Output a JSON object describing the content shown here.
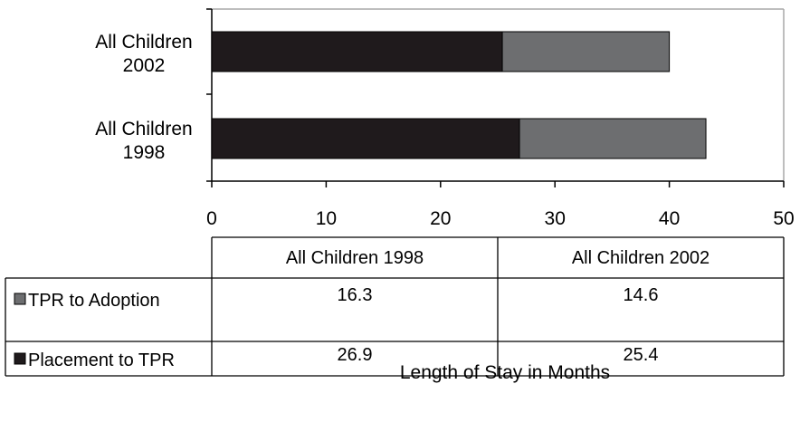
{
  "chart_data": {
    "type": "bar",
    "orientation": "horizontal",
    "stacked": true,
    "categories": [
      {
        "lines": [
          "All Children",
          "1998"
        ]
      },
      {
        "lines": [
          "All Children",
          "2002"
        ]
      }
    ],
    "series": [
      {
        "name": "Placement to TPR",
        "color": "#1f1a1c",
        "values": [
          26.9,
          25.4
        ]
      },
      {
        "name": "TPR to Adoption",
        "color": "#6d6e70",
        "values": [
          16.3,
          14.6
        ]
      }
    ],
    "xlim": [
      0,
      50
    ],
    "xticks": [
      "0",
      "10",
      "20",
      "30",
      "40",
      "50"
    ],
    "xlabel": "Length of Stay in Months",
    "title": "",
    "grid": false,
    "data_table": {
      "columns": [
        "All Children 1998",
        "All Children 2002"
      ],
      "rows": [
        {
          "label": "TPR to Adoption",
          "values": [
            "16.3",
            "14.6"
          ]
        },
        {
          "label": "Placement to TPR",
          "values": [
            "26.9",
            "25.4"
          ]
        }
      ]
    }
  }
}
